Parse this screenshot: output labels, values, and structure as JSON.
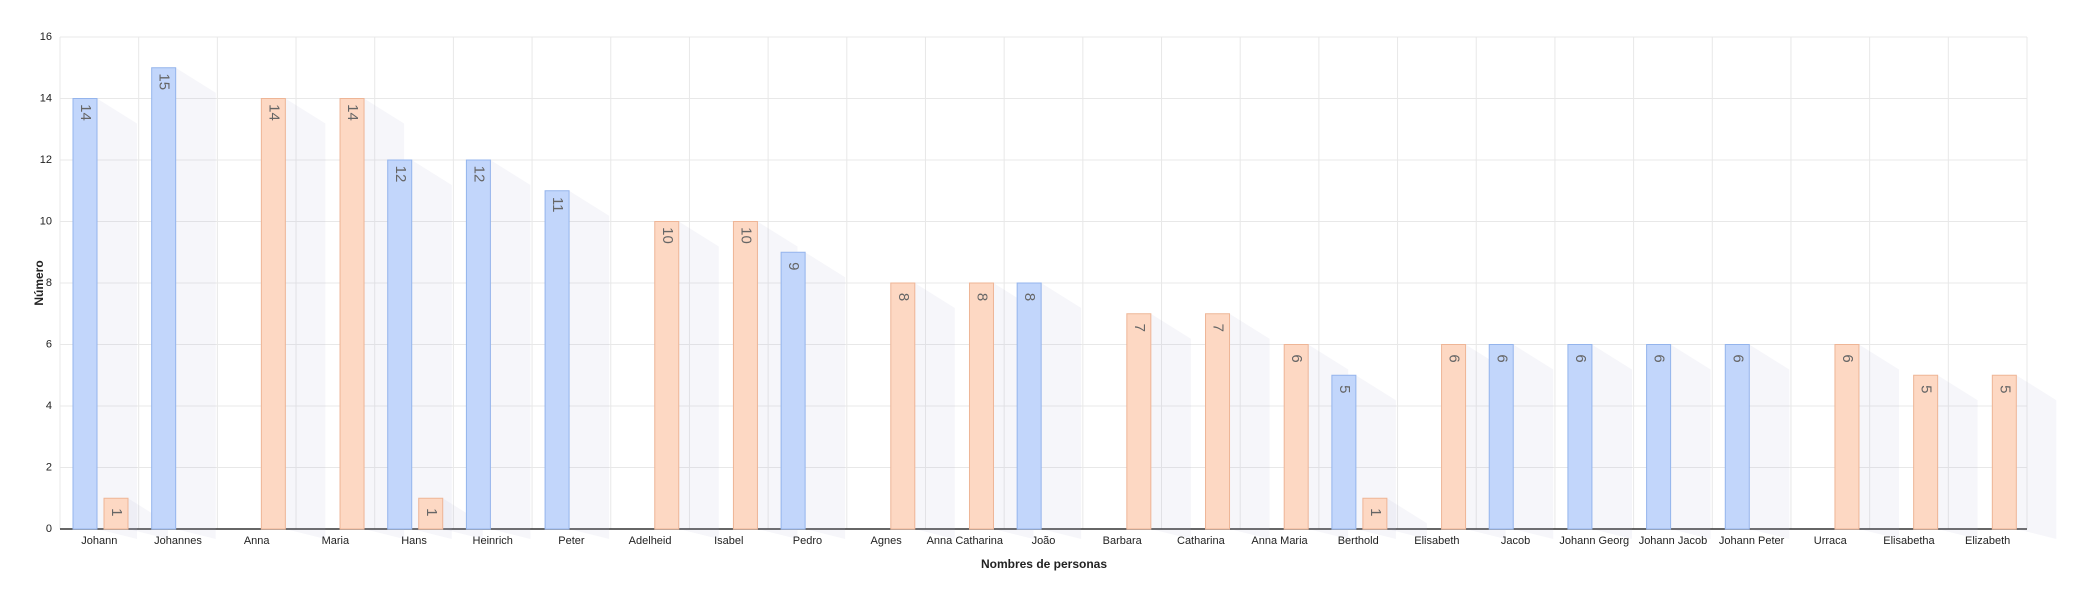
{
  "chart_data": {
    "type": "bar",
    "x_label": "Nombres de personas",
    "y_label": "Número",
    "categories": [
      "Johann",
      "Johannes",
      "Anna",
      "Maria",
      "Hans",
      "Heinrich",
      "Peter",
      "Adelheid",
      "Isabel",
      "Pedro",
      "Agnes",
      "Anna Catharina",
      "João",
      "Barbara",
      "Catharina",
      "Anna Maria",
      "Berthold",
      "Elisabeth",
      "Jacob",
      "Johann Georg",
      "Johann Jacob",
      "Johann Peter",
      "Urraca",
      "Elisabetha",
      "Elizabeth"
    ],
    "series": [
      {
        "color": "#c2d6fb",
        "values": [
          14,
          15,
          null,
          null,
          12,
          12,
          11,
          null,
          null,
          9,
          null,
          null,
          8,
          null,
          null,
          null,
          5,
          null,
          6,
          6,
          6,
          6,
          null,
          null,
          null
        ]
      },
      {
        "color": "#fdd8c3",
        "values": [
          1,
          null,
          14,
          14,
          1,
          null,
          null,
          10,
          10,
          null,
          8,
          8,
          null,
          7,
          7,
          6,
          1,
          6,
          null,
          null,
          null,
          null,
          6,
          5,
          5
        ]
      }
    ],
    "ylim": [
      0,
      16
    ],
    "yticks": [
      0,
      2,
      4,
      6,
      8,
      10,
      12,
      14,
      16
    ],
    "grid": true
  }
}
